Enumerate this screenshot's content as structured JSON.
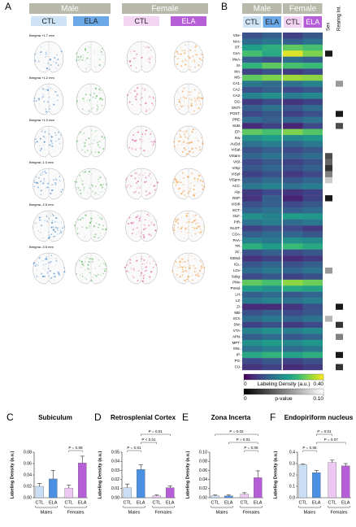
{
  "panel_labels": [
    "A",
    "B",
    "C",
    "D",
    "E",
    "F"
  ],
  "panel_a": {
    "groups": [
      "Male",
      "Female"
    ],
    "conditions": [
      "CTL",
      "ELA",
      "CTL",
      "ELA"
    ],
    "sections": [
      "Bregma +1.7 mm",
      "Bregma +1.2 mm",
      "Bregma +1.0 mm",
      "Bregma -1.0 mm",
      "Bregma -2.5 mm",
      "Bregma -3.5 mm"
    ]
  },
  "chart_data": [
    {
      "type": "heatmap",
      "groups": [
        "Male",
        "Female"
      ],
      "columns": [
        "CTL",
        "ELA",
        "CTL",
        "ELA"
      ],
      "p_columns": [
        "Sex",
        "Rearing Int."
      ],
      "rows": [
        "VSe",
        "NAc",
        "OT",
        "CeA",
        "MeA",
        "SI",
        "MA",
        "MS",
        "CA1",
        "CA2",
        "CA3",
        "DG",
        "ENTl",
        "POST",
        "PRE",
        "SUB",
        "EP",
        "IIIa",
        "AUDd",
        "VISal",
        "VISam",
        "VISl",
        "VISp",
        "VISpl",
        "VISpm",
        "ACC",
        "AIp",
        "RSP",
        "VISrll",
        "ECT",
        "OLF",
        "PIR",
        "NLOT",
        "COA",
        "PAA",
        "TR",
        "PF",
        "GENd",
        "IGL",
        "LGv",
        "Subg",
        "PMv",
        "PVHd",
        "LH",
        "LZ",
        "ZI",
        "MB",
        "SCs",
        "SNr",
        "VTA",
        "APN",
        "MPT",
        "SNc",
        "IP",
        "PG",
        "CU"
      ],
      "values": [
        [
          0.1,
          0.12,
          0.08,
          0.11
        ],
        [
          0.14,
          0.16,
          0.12,
          0.15
        ],
        [
          0.22,
          0.25,
          0.3,
          0.28
        ],
        [
          0.28,
          0.24,
          0.38,
          0.32
        ],
        [
          0.12,
          0.1,
          0.14,
          0.12
        ],
        [
          0.26,
          0.3,
          0.28,
          0.27
        ],
        [
          0.08,
          0.1,
          0.07,
          0.09
        ],
        [
          0.3,
          0.32,
          0.34,
          0.33
        ],
        [
          0.16,
          0.14,
          0.15,
          0.18
        ],
        [
          0.1,
          0.12,
          0.09,
          0.11
        ],
        [
          0.18,
          0.2,
          0.17,
          0.19
        ],
        [
          0.07,
          0.09,
          0.06,
          0.08
        ],
        [
          0.12,
          0.15,
          0.11,
          0.14
        ],
        [
          0.09,
          0.11,
          0.08,
          0.1
        ],
        [
          0.14,
          0.12,
          0.13,
          0.15
        ],
        [
          0.05,
          0.08,
          0.04,
          0.09
        ],
        [
          0.3,
          0.28,
          0.32,
          0.29
        ],
        [
          0.2,
          0.22,
          0.19,
          0.21
        ],
        [
          0.15,
          0.17,
          0.13,
          0.16
        ],
        [
          0.1,
          0.12,
          0.09,
          0.11
        ],
        [
          0.13,
          0.15,
          0.12,
          0.14
        ],
        [
          0.09,
          0.11,
          0.08,
          0.1
        ],
        [
          0.11,
          0.13,
          0.1,
          0.12
        ],
        [
          0.08,
          0.1,
          0.07,
          0.09
        ],
        [
          0.12,
          0.14,
          0.11,
          0.13
        ],
        [
          0.16,
          0.18,
          0.15,
          0.17
        ],
        [
          0.07,
          0.09,
          0.06,
          0.08
        ],
        [
          0.06,
          0.12,
          0.04,
          0.08
        ],
        [
          0.1,
          0.12,
          0.09,
          0.11
        ],
        [
          0.13,
          0.15,
          0.12,
          0.14
        ],
        [
          0.2,
          0.18,
          0.22,
          0.21
        ],
        [
          0.15,
          0.17,
          0.14,
          0.16
        ],
        [
          0.08,
          0.1,
          0.09,
          0.07
        ],
        [
          0.12,
          0.14,
          0.13,
          0.11
        ],
        [
          0.18,
          0.16,
          0.2,
          0.19
        ],
        [
          0.25,
          0.22,
          0.27,
          0.24
        ],
        [
          0.1,
          0.12,
          0.09,
          0.11
        ],
        [
          0.06,
          0.08,
          0.05,
          0.07
        ],
        [
          0.11,
          0.13,
          0.1,
          0.12
        ],
        [
          0.14,
          0.16,
          0.13,
          0.15
        ],
        [
          0.09,
          0.11,
          0.08,
          0.1
        ],
        [
          0.3,
          0.28,
          0.33,
          0.31
        ],
        [
          0.22,
          0.2,
          0.24,
          0.23
        ],
        [
          0.12,
          0.14,
          0.11,
          0.13
        ],
        [
          0.16,
          0.18,
          0.15,
          0.17
        ],
        [
          0.05,
          0.05,
          0.06,
          0.1
        ],
        [
          0.1,
          0.12,
          0.09,
          0.11
        ],
        [
          0.14,
          0.16,
          0.13,
          0.15
        ],
        [
          0.08,
          0.1,
          0.07,
          0.09
        ],
        [
          0.18,
          0.2,
          0.17,
          0.19
        ],
        [
          0.12,
          0.14,
          0.11,
          0.13
        ],
        [
          0.2,
          0.22,
          0.19,
          0.21
        ],
        [
          0.15,
          0.17,
          0.14,
          0.16
        ],
        [
          0.24,
          0.26,
          0.23,
          0.25
        ],
        [
          0.09,
          0.11,
          0.08,
          0.1
        ],
        [
          0.06,
          0.08,
          0.05,
          0.07
        ]
      ],
      "p_values": [
        [
          0.1,
          0.1
        ],
        [
          0.1,
          0.1
        ],
        [
          0.1,
          0.1
        ],
        [
          0.01,
          0.1
        ],
        [
          0.1,
          0.1
        ],
        [
          0.1,
          0.1
        ],
        [
          0.1,
          0.1
        ],
        [
          0.1,
          0.1
        ],
        [
          0.1,
          0.06
        ],
        [
          0.1,
          0.1
        ],
        [
          0.1,
          0.1
        ],
        [
          0.1,
          0.1
        ],
        [
          0.1,
          0.1
        ],
        [
          0.1,
          0.01
        ],
        [
          0.1,
          0.1
        ],
        [
          0.1,
          0.03
        ],
        [
          0.1,
          0.1
        ],
        [
          0.1,
          0.1
        ],
        [
          0.1,
          0.1
        ],
        [
          0.1,
          0.1
        ],
        [
          0.03,
          0.1
        ],
        [
          0.04,
          0.1
        ],
        [
          0.02,
          0.1
        ],
        [
          0.05,
          0.1
        ],
        [
          0.08,
          0.1
        ],
        [
          0.1,
          0.1
        ],
        [
          0.1,
          0.1
        ],
        [
          0.01,
          0.1
        ],
        [
          0.1,
          0.1
        ],
        [
          0.1,
          0.1
        ],
        [
          0.1,
          0.1
        ],
        [
          0.1,
          0.1
        ],
        [
          0.1,
          0.1
        ],
        [
          0.1,
          0.1
        ],
        [
          0.1,
          0.1
        ],
        [
          0.1,
          0.1
        ],
        [
          0.1,
          0.1
        ],
        [
          0.1,
          0.1
        ],
        [
          0.1,
          0.1
        ],
        [
          0.06,
          0.1
        ],
        [
          0.1,
          0.1
        ],
        [
          0.1,
          0.1
        ],
        [
          0.1,
          0.1
        ],
        [
          0.1,
          0.1
        ],
        [
          0.1,
          0.1
        ],
        [
          0.1,
          0.01
        ],
        [
          0.1,
          0.1
        ],
        [
          0.07,
          0.1
        ],
        [
          0.1,
          0.02
        ],
        [
          0.1,
          0.1
        ],
        [
          0.1,
          0.05
        ],
        [
          0.1,
          0.1
        ],
        [
          0.1,
          0.1
        ],
        [
          0.1,
          0.01
        ],
        [
          0.1,
          0.1
        ],
        [
          0.1,
          0.02
        ]
      ],
      "colorbar": {
        "label": "Labeling Density (a.u.)",
        "lim": [
          0,
          0.4
        ],
        "ticks": [
          0,
          {
            "value": 0.4,
            "label": "0.40"
          }
        ]
      },
      "p_colorbar": {
        "label": "p-value",
        "lim": [
          0,
          0.1
        ],
        "ticks": [
          0,
          {
            "value": 0.1,
            "label": "0.10"
          }
        ]
      }
    },
    {
      "type": "bar",
      "title": "Subiculum",
      "ylabel": "Labeling Density (a.u.)",
      "categories": [
        "CTL",
        "ELA",
        "CTL",
        "ELA"
      ],
      "group_labels": [
        "Males",
        "Females"
      ],
      "values": [
        0.02,
        0.033,
        0.017,
        0.061
      ],
      "errors": [
        0.005,
        0.015,
        0.005,
        0.012
      ],
      "colors": [
        "#c9def5",
        "#4a90e2",
        "#ecc8f2",
        "#b55ed8"
      ],
      "ylim": [
        0,
        0.08
      ],
      "yticks": [
        {
          "value": 0,
          "label": "0.00"
        },
        {
          "value": 0.02,
          "label": "0.02"
        },
        {
          "value": 0.04,
          "label": "0.04"
        },
        {
          "value": 0.06,
          "label": "0.06"
        },
        {
          "value": 0.08,
          "label": "0.08"
        }
      ],
      "annotations": [
        {
          "text": "P = 0.06",
          "between": [
            2,
            3
          ]
        }
      ]
    },
    {
      "type": "bar",
      "title": "Retrosplenial Cortex",
      "ylabel": "Labeling Density (a.u.)",
      "categories": [
        "CTL",
        "ELA",
        "CTL",
        "ELA"
      ],
      "group_labels": [
        "Males",
        "Females"
      ],
      "values": [
        0.011,
        0.031,
        0.002,
        0.011
      ],
      "errors": [
        0.004,
        0.005,
        0.001,
        0.002
      ],
      "colors": [
        "#c9def5",
        "#4a90e2",
        "#ecc8f2",
        "#b55ed8"
      ],
      "ylim": [
        0,
        0.05
      ],
      "yticks": [
        {
          "value": 0,
          "label": "0.00"
        },
        {
          "value": 0.01,
          "label": "0.01"
        },
        {
          "value": 0.02,
          "label": "0.02"
        },
        {
          "value": 0.03,
          "label": "0.03"
        },
        {
          "value": 0.04,
          "label": "0.04"
        },
        {
          "value": 0.05,
          "label": "0.05"
        }
      ],
      "annotations": [
        {
          "text": "P = 0.01",
          "between": [
            0,
            1
          ]
        },
        {
          "text": "P < 0.01",
          "between": [
            1,
            2
          ]
        },
        {
          "text": "P = 0.01",
          "between": [
            1,
            3
          ]
        }
      ]
    },
    {
      "type": "bar",
      "title": "Zona Incerta",
      "ylabel": "Labeling Density (a.u.)",
      "categories": [
        "CTL",
        "ELA",
        "CTL",
        "ELA"
      ],
      "group_labels": [
        "Males",
        "Females"
      ],
      "values": [
        0.004,
        0.004,
        0.008,
        0.044
      ],
      "errors": [
        0.002,
        0.002,
        0.003,
        0.015
      ],
      "colors": [
        "#c9def5",
        "#4a90e2",
        "#ecc8f2",
        "#b55ed8"
      ],
      "ylim": [
        0,
        0.1
      ],
      "yticks": [
        {
          "value": 0,
          "label": "0.00"
        },
        {
          "value": 0.02,
          "label": "0.02"
        },
        {
          "value": 0.04,
          "label": "0.04"
        },
        {
          "value": 0.06,
          "label": "0.06"
        },
        {
          "value": 0.08,
          "label": "0.08"
        },
        {
          "value": 0.1,
          "label": "0.10"
        }
      ],
      "annotations": [
        {
          "text": "P = 0.06",
          "between": [
            2,
            3
          ]
        },
        {
          "text": "P = 0.01",
          "between": [
            1,
            3
          ]
        },
        {
          "text": "P = 0.02",
          "between": [
            0,
            3
          ]
        }
      ]
    },
    {
      "type": "bar",
      "title": "Endopiriform nucleus",
      "ylabel": "Labeling Density (a.u.)",
      "categories": [
        "CTL",
        "ELA",
        "CTL",
        "ELA"
      ],
      "group_labels": [
        "Males",
        "Females"
      ],
      "values": [
        0.29,
        0.22,
        0.31,
        0.28
      ],
      "errors": [
        0.005,
        0.02,
        0.02,
        0.02
      ],
      "colors": [
        "#c9def5",
        "#4a90e2",
        "#ecc8f2",
        "#b55ed8"
      ],
      "ylim": [
        0,
        0.4
      ],
      "yticks": [
        {
          "value": 0,
          "label": "0.0"
        },
        {
          "value": 0.1,
          "label": "0.1"
        },
        {
          "value": 0.2,
          "label": "0.2"
        },
        {
          "value": 0.3,
          "label": "0.3"
        },
        {
          "value": 0.4,
          "label": "0.4"
        }
      ],
      "annotations": [
        {
          "text": "P = 0.05",
          "between": [
            0,
            1
          ]
        },
        {
          "text": "P = 0.07",
          "between": [
            1,
            3
          ]
        },
        {
          "text": "P = 0.01",
          "between": [
            1,
            2
          ]
        }
      ]
    }
  ]
}
